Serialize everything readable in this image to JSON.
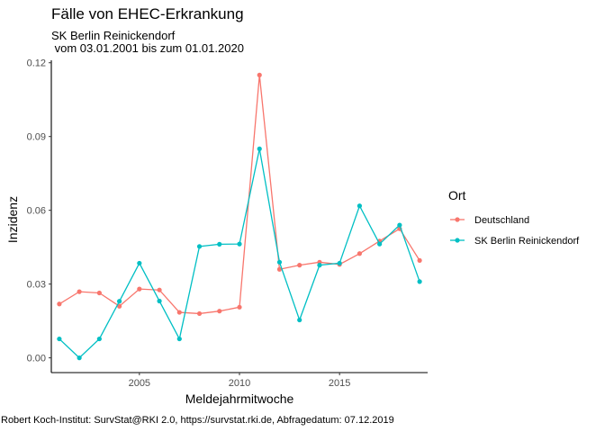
{
  "chart_data": {
    "type": "line",
    "title": "Fälle von EHEC-Erkrankung",
    "subtitle_line1": "SK Berlin Reinickendorf",
    "subtitle_line2": " vom 03.01.2001 bis zum 01.01.2020",
    "xlabel": "Meldejahrmitwoche",
    "ylabel": "Inzidenz",
    "caption": "Robert Koch-Institut: SurvStat@RKI 2.0, https://survstat.rki.de, Abfragedatum: 07.12.2019",
    "xlim": [
      2000.6,
      2019.4
    ],
    "ylim": [
      -0.006,
      0.121
    ],
    "x_ticks": [
      2005,
      2010,
      2015
    ],
    "x_tick_labels": [
      "2005",
      "2010",
      "2015"
    ],
    "y_ticks": [
      0,
      0.03,
      0.06,
      0.09,
      0.12
    ],
    "y_tick_labels": [
      "0.00",
      "0.03",
      "0.06",
      "0.09",
      "0.12"
    ],
    "grid": false,
    "legend": {
      "title": "Ort",
      "placement": "right"
    },
    "x": [
      2001,
      2002,
      2003,
      2004,
      2005,
      2006,
      2007,
      2008,
      2009,
      2010,
      2011,
      2012,
      2013,
      2014,
      2015,
      2016,
      2017,
      2018,
      2019
    ],
    "series": [
      {
        "name": "Deutschland",
        "color": "#F8766D",
        "values": [
          0.0219,
          0.0269,
          0.0264,
          0.021,
          0.028,
          0.0276,
          0.0185,
          0.018,
          0.019,
          0.0206,
          0.115,
          0.036,
          0.0377,
          0.0389,
          0.038,
          0.0424,
          0.0475,
          0.0525,
          0.0396
        ]
      },
      {
        "name": "SK Berlin Reinickendorf",
        "color": "#00BFC4",
        "values": [
          0.0077,
          0.0,
          0.0077,
          0.023,
          0.0385,
          0.0231,
          0.0077,
          0.0453,
          0.0462,
          0.0463,
          0.085,
          0.0389,
          0.0154,
          0.0377,
          0.0385,
          0.0618,
          0.0463,
          0.054,
          0.031
        ]
      }
    ]
  }
}
